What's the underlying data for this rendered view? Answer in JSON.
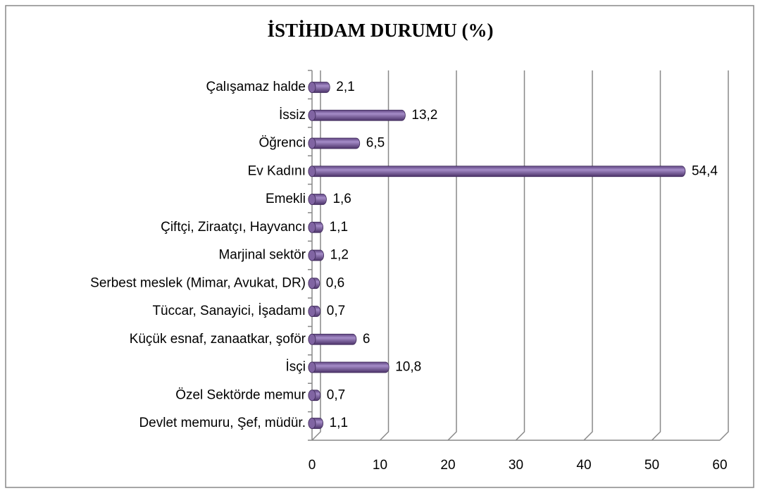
{
  "chart_data": {
    "type": "bar",
    "orientation": "horizontal",
    "title": "İSTİHDAM DURUMU (%)",
    "categories": [
      "Devlet memuru, Şef, müdür.",
      "Özel Sektörde memur",
      "İsçi",
      "Küçük esnaf, zanaatkar, şoför",
      "Tüccar, Sanayici, İşadamı",
      "Serbest meslek (Mimar, Avukat, DR)",
      "Marjinal sektör",
      "Çiftçi, Ziraatçı, Hayvancı",
      "Emekli",
      "Ev Kadını",
      "Öğrenci",
      "İssiz",
      "Çalışamaz halde"
    ],
    "values": [
      1.1,
      0.7,
      10.8,
      6,
      0.7,
      0.6,
      1.2,
      1.1,
      1.6,
      54.4,
      6.5,
      13.2,
      2.1
    ],
    "value_labels": [
      "1,1",
      "0,7",
      "10,8",
      "6",
      "0,7",
      "0,6",
      "1,2",
      "1,1",
      "1,6",
      "54,4",
      "6,5",
      "13,2",
      "2,1"
    ],
    "color": "#8064a2",
    "xlim": [
      0,
      60
    ],
    "xticks": [
      0,
      10,
      20,
      30,
      40,
      50,
      60
    ],
    "grid": true
  }
}
